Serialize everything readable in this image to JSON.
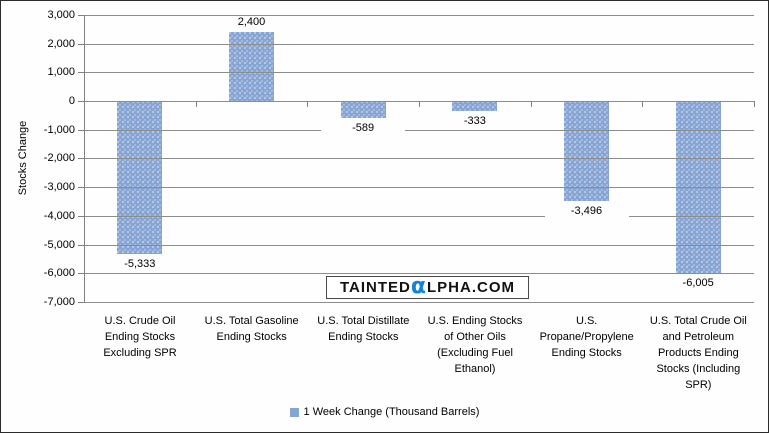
{
  "chart_data": {
    "type": "bar",
    "title": "",
    "xlabel": "",
    "ylabel": "Stocks Change",
    "ylim": [
      -7000,
      3000
    ],
    "grid": true,
    "legend_position": "bottom",
    "series_name": "1 Week Change (Thousand Barrels)",
    "bar_color": "#84A5D6",
    "categories": [
      "U.S. Crude Oil Ending Stocks Excluding SPR",
      "U.S. Total Gasoline Ending Stocks",
      "U.S. Total Distillate Ending Stocks",
      "U.S. Ending Stocks of Other Oils (Excluding Fuel Ethanol)",
      "U.S. Propane/Propylene Ending Stocks",
      "U.S. Total Crude Oil and Petroleum Products Ending Stocks (Including SPR)"
    ],
    "categories_wrapped": [
      "U.S. Crude Oil\nEnding Stocks\nExcluding SPR",
      "U.S. Total Gasoline\nEnding Stocks",
      "U.S. Total Distillate\nEnding Stocks",
      "U.S. Ending Stocks\nof Other Oils\n(Excluding Fuel\nEthanol)",
      "U.S.\nPropane/Propylene\nEnding Stocks",
      "U.S. Total Crude Oil\nand Petroleum\nProducts Ending\nStocks (Including\nSPR)"
    ],
    "values": [
      -5333,
      2400,
      -589,
      -333,
      -3496,
      -6005
    ],
    "value_labels": [
      "-5,333",
      "2,400",
      "-589",
      "-333",
      "-3,496",
      "-6,005"
    ],
    "y_ticks": [
      {
        "value": 3000,
        "label": "3,000"
      },
      {
        "value": 2000,
        "label": "2,000"
      },
      {
        "value": 1000,
        "label": "1,000"
      },
      {
        "value": 0,
        "label": "0"
      },
      {
        "value": -1000,
        "label": "-1,000"
      },
      {
        "value": -2000,
        "label": "-2,000"
      },
      {
        "value": -3000,
        "label": "-3,000"
      },
      {
        "value": -4000,
        "label": "-4,000"
      },
      {
        "value": -5000,
        "label": "-5,000"
      },
      {
        "value": -6000,
        "label": "-6,000"
      },
      {
        "value": -7000,
        "label": "-7,000"
      }
    ]
  },
  "legend": {
    "label": "1 Week Change (Thousand Barrels)",
    "swatch_color": "#84A5D6"
  },
  "watermark": {
    "prefix": "TAINTED",
    "alpha": "α",
    "suffix": "LPHA.COM",
    "alpha_color": "#1283D6"
  }
}
